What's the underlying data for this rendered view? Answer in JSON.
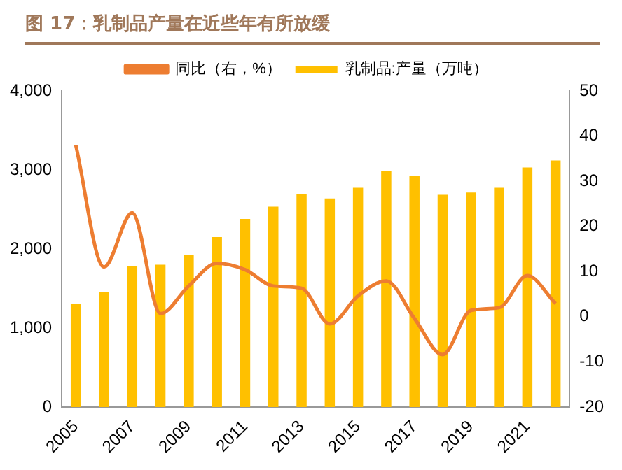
{
  "chart_data": {
    "type": "bar",
    "title": "图 17：乳制品产量在近些年有所放缓",
    "categories": [
      "2005",
      null,
      "2007",
      null,
      "2009",
      null,
      "2011",
      null,
      "2013",
      null,
      "2015",
      null,
      "2017",
      null,
      "2019",
      null,
      "2021",
      null
    ],
    "series": [
      {
        "name": "乳制品:产量（万吨）",
        "color": "#ffc000",
        "values": [
          1310,
          1450,
          1785,
          1800,
          1925,
          2150,
          2380,
          2535,
          2690,
          2640,
          2775,
          2990,
          2930,
          2685,
          2715,
          2775,
          3030,
          3120
        ]
      },
      {
        "name": "同比（右，%）",
        "type": "line",
        "axis": "y2",
        "color": "#ed7d31",
        "values": [
          38,
          11,
          23,
          0.7,
          6.8,
          11.8,
          10.4,
          6.8,
          6.3,
          -1.6,
          4.6,
          7.9,
          -0.4,
          -8.4,
          1.4,
          2,
          9.1,
          2.9
        ]
      }
    ],
    "ylim": [
      0,
      4000
    ],
    "yticks": [
      {
        "value": 0,
        "label": "0"
      },
      {
        "value": 1000,
        "label": "1,000"
      },
      {
        "value": 2000,
        "label": "2,000"
      },
      {
        "value": 3000,
        "label": "3,000"
      },
      {
        "value": 4000,
        "label": "4,000"
      }
    ],
    "y2lim": [
      -20,
      50
    ],
    "y2ticks": [
      -20,
      -10,
      0,
      10,
      20,
      30,
      40,
      50
    ],
    "grid": false,
    "legend": "top",
    "marker": "none"
  }
}
